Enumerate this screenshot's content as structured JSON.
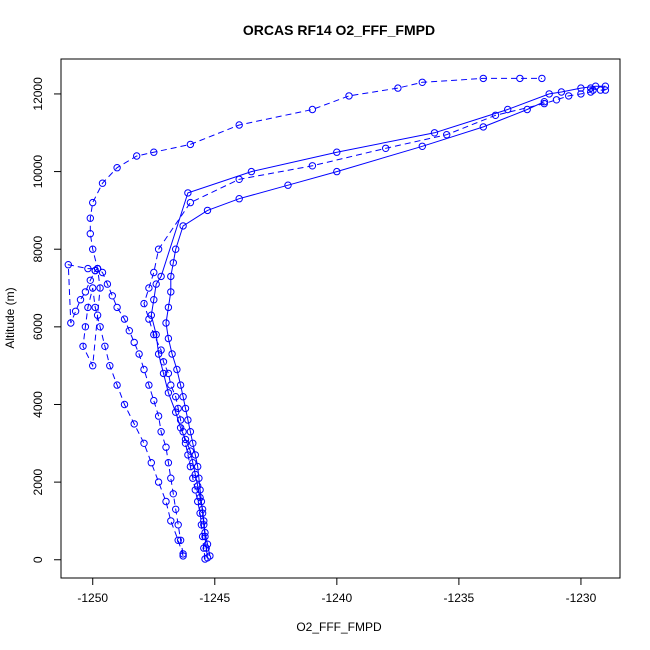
{
  "chart_data": {
    "type": "scatter",
    "title": "ORCAS RF14 O2_FFF_FMPD",
    "xlabel": "O2_FFF_FMPD",
    "ylabel": "Altitude (m)",
    "xlim": [
      -1251.3,
      -1228.4
    ],
    "ylim": [
      -470,
      12900
    ],
    "xticks": [
      -1250,
      -1245,
      -1240,
      -1235,
      -1230
    ],
    "yticks": [
      0,
      2000,
      4000,
      6000,
      8000,
      10000,
      12000
    ],
    "grid": false,
    "series_color": "#0000ff",
    "marker": "open-circle",
    "series": [
      {
        "line": "solid",
        "x": [
          -1245.3,
          -1245.35,
          -1245.4,
          -1245.45,
          -1245.5,
          -1245.55,
          -1245.6,
          -1245.65,
          -1245.7,
          -1245.8,
          -1245.9,
          -1246.0,
          -1246.1,
          -1246.2,
          -1246.3,
          -1246.4,
          -1246.55,
          -1246.75,
          -1246.9,
          -1247.0,
          -1246.9,
          -1246.8,
          -1246.8,
          -1246.7,
          -1246.6,
          -1246.3,
          -1245.3,
          -1244.0,
          -1242.0,
          -1240.0,
          -1236.5,
          -1234.0,
          -1232.2,
          -1231.5
        ],
        "y": [
          50,
          300,
          600,
          900,
          1200,
          1500,
          1800,
          2100,
          2400,
          2700,
          3000,
          3300,
          3600,
          3900,
          4200,
          4500,
          4900,
          5300,
          5700,
          6100,
          6500,
          6900,
          7300,
          7650,
          8000,
          8600,
          9000,
          9300,
          9650,
          10000,
          10650,
          11150,
          11600,
          11800
        ]
      },
      {
        "line": "dashed",
        "x": [
          -1245.4,
          -1245.45,
          -1245.5,
          -1245.55,
          -1245.6,
          -1245.7,
          -1245.8,
          -1245.9,
          -1246.0,
          -1246.1,
          -1246.2,
          -1246.3,
          -1246.4,
          -1246.5,
          -1246.6,
          -1246.8,
          -1246.9,
          -1247.1,
          -1247.2,
          -1247.5,
          -1247.7,
          -1247.9,
          -1247.7,
          -1247.5,
          -1247.3,
          -1246.0,
          -1244.0,
          -1241.0,
          -1238.0,
          -1235.5,
          -1233.5,
          -1231.5,
          -1231.0,
          -1230.5,
          -1230.0,
          -1229.6,
          -1229.5,
          -1229.6,
          -1229.2,
          -1229.0
        ],
        "y": [
          20,
          300,
          600,
          900,
          1200,
          1500,
          1800,
          2100,
          2400,
          2700,
          3000,
          3300,
          3600,
          3900,
          4200,
          4500,
          4800,
          5100,
          5400,
          5800,
          6200,
          6600,
          7000,
          7400,
          8000,
          9200,
          9800,
          10150,
          10600,
          10950,
          11450,
          11750,
          11850,
          11950,
          12000,
          12050,
          12100,
          12150,
          12100,
          12100
        ]
      },
      {
        "line": "solid",
        "x": [
          -1245.2,
          -1245.3,
          -1245.4,
          -1245.45,
          -1245.5,
          -1245.6,
          -1245.7,
          -1245.8,
          -1245.9,
          -1246.0,
          -1246.2,
          -1246.4,
          -1246.6,
          -1246.9,
          -1247.1,
          -1247.3,
          -1247.4,
          -1247.6,
          -1247.5,
          -1247.4,
          -1247.2,
          -1246.1,
          -1243.5,
          -1240.0,
          -1236.0,
          -1233.0,
          -1231.3,
          -1230.8,
          -1230.0,
          -1229.4,
          -1229.0
        ],
        "y": [
          100,
          400,
          700,
          1000,
          1300,
          1600,
          1900,
          2200,
          2500,
          2800,
          3100,
          3400,
          3800,
          4300,
          4800,
          5300,
          5800,
          6300,
          6700,
          7100,
          7300,
          9450,
          10000,
          10500,
          11000,
          11600,
          12000,
          12050,
          12150,
          12200,
          12200
        ]
      },
      {
        "line": "dashed",
        "x": [
          -1246.3,
          -1246.4,
          -1246.5,
          -1246.6,
          -1246.7,
          -1246.8,
          -1246.9,
          -1247.0,
          -1247.2,
          -1247.3,
          -1247.5,
          -1247.7,
          -1247.9,
          -1248.1,
          -1248.3,
          -1248.5,
          -1248.7,
          -1249.0,
          -1249.2,
          -1249.4,
          -1249.6,
          -1249.8,
          -1249.9,
          -1250.1,
          -1250.3,
          -1250.5,
          -1250.7,
          -1250.9,
          -1251.0,
          -1250.2,
          -1249.8,
          -1249.9
        ],
        "y": [
          150,
          500,
          900,
          1300,
          1700,
          2100,
          2500,
          2900,
          3300,
          3700,
          4100,
          4500,
          4900,
          5300,
          5600,
          5900,
          6200,
          6500,
          6800,
          7100,
          7400,
          7500,
          7450,
          7200,
          6900,
          6700,
          6400,
          6100,
          7600,
          7500,
          7500,
          7450
        ]
      },
      {
        "line": "dashed",
        "x": [
          -1246.3,
          -1246.5,
          -1246.8,
          -1247.0,
          -1247.3,
          -1247.6,
          -1247.9,
          -1248.3,
          -1248.7,
          -1249.0,
          -1249.3,
          -1249.5,
          -1249.7,
          -1249.9,
          -1250.0,
          -1250.2,
          -1250.3,
          -1250.4,
          -1250.0,
          -1249.8,
          -1249.7,
          -1249.8,
          -1250.0,
          -1250.1,
          -1250.1,
          -1250.0,
          -1249.6,
          -1249.0,
          -1248.2,
          -1247.5,
          -1246.0,
          -1244.0,
          -1241.0,
          -1239.5,
          -1237.5,
          -1236.5,
          -1234.0,
          -1232.5,
          -1231.6
        ],
        "y": [
          100,
          500,
          1000,
          1500,
          2000,
          2500,
          3000,
          3500,
          4000,
          4500,
          5000,
          5500,
          6000,
          6500,
          7000,
          6500,
          6000,
          5500,
          5000,
          6300,
          7000,
          7500,
          8000,
          8400,
          8800,
          9200,
          9700,
          10100,
          10400,
          10500,
          10700,
          11200,
          11600,
          11950,
          12150,
          12300,
          12400,
          12400,
          12400
        ]
      }
    ]
  }
}
